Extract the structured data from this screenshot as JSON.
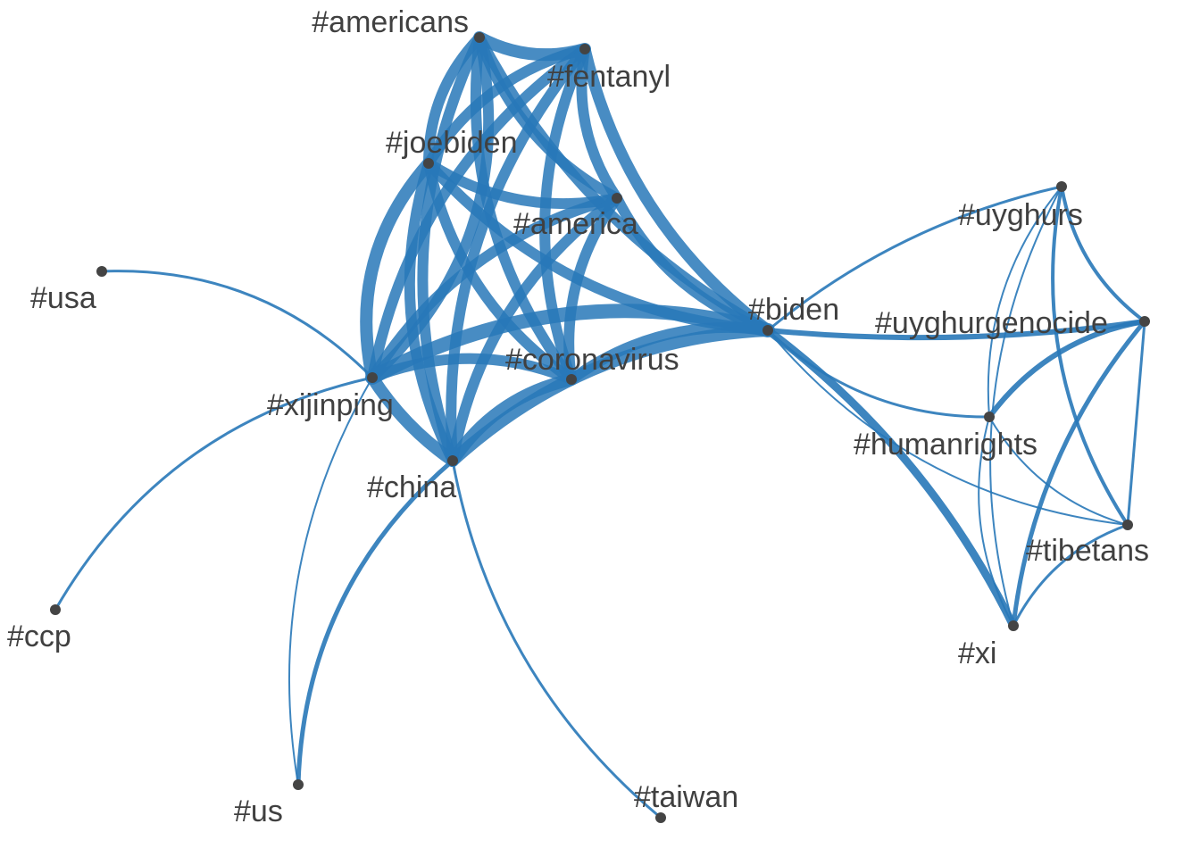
{
  "graph": {
    "colors": {
      "edge": "#2878b8",
      "node": "#444444",
      "label": "#404040",
      "background": "#ffffff"
    },
    "nodes": [
      {
        "id": "americans",
        "label": "#americans"
      },
      {
        "id": "fentanyl",
        "label": "#fentanyl"
      },
      {
        "id": "joebiden",
        "label": "#joebiden"
      },
      {
        "id": "america",
        "label": "#america"
      },
      {
        "id": "biden",
        "label": "#biden"
      },
      {
        "id": "coronavirus",
        "label": "#coronavirus"
      },
      {
        "id": "xijinping",
        "label": "#xijinping"
      },
      {
        "id": "china",
        "label": "#china"
      },
      {
        "id": "usa",
        "label": "#usa"
      },
      {
        "id": "ccp",
        "label": "#ccp"
      },
      {
        "id": "us",
        "label": "#us"
      },
      {
        "id": "taiwan",
        "label": "#taiwan"
      },
      {
        "id": "uyghurs",
        "label": "#uyghurs"
      },
      {
        "id": "uyghurgenocide",
        "label": "#uyghurgenocide"
      },
      {
        "id": "humanrights",
        "label": "#humanrights"
      },
      {
        "id": "tibetans",
        "label": "#tibetans"
      },
      {
        "id": "xi",
        "label": "#xi"
      }
    ],
    "edges": [
      {
        "source": "americans",
        "target": "fentanyl",
        "weight": 14
      },
      {
        "source": "americans",
        "target": "joebiden",
        "weight": 12
      },
      {
        "source": "americans",
        "target": "america",
        "weight": 12
      },
      {
        "source": "americans",
        "target": "biden",
        "weight": 12
      },
      {
        "source": "americans",
        "target": "coronavirus",
        "weight": 12
      },
      {
        "source": "americans",
        "target": "xijinping",
        "weight": 12
      },
      {
        "source": "americans",
        "target": "china",
        "weight": 12
      },
      {
        "source": "fentanyl",
        "target": "joebiden",
        "weight": 12
      },
      {
        "source": "fentanyl",
        "target": "america",
        "weight": 12
      },
      {
        "source": "fentanyl",
        "target": "biden",
        "weight": 13
      },
      {
        "source": "fentanyl",
        "target": "coronavirus",
        "weight": 12
      },
      {
        "source": "fentanyl",
        "target": "xijinping",
        "weight": 12
      },
      {
        "source": "fentanyl",
        "target": "china",
        "weight": 12
      },
      {
        "source": "joebiden",
        "target": "america",
        "weight": 12
      },
      {
        "source": "joebiden",
        "target": "biden",
        "weight": 12
      },
      {
        "source": "joebiden",
        "target": "coronavirus",
        "weight": 12
      },
      {
        "source": "joebiden",
        "target": "xijinping",
        "weight": 14
      },
      {
        "source": "joebiden",
        "target": "china",
        "weight": 12
      },
      {
        "source": "america",
        "target": "biden",
        "weight": 12
      },
      {
        "source": "america",
        "target": "coronavirus",
        "weight": 12
      },
      {
        "source": "america",
        "target": "xijinping",
        "weight": 12
      },
      {
        "source": "america",
        "target": "china",
        "weight": 12
      },
      {
        "source": "biden",
        "target": "coronavirus",
        "weight": 12
      },
      {
        "source": "biden",
        "target": "xijinping",
        "weight": 16
      },
      {
        "source": "biden",
        "target": "china",
        "weight": 14
      },
      {
        "source": "coronavirus",
        "target": "xijinping",
        "weight": 12
      },
      {
        "source": "coronavirus",
        "target": "china",
        "weight": 14
      },
      {
        "source": "xijinping",
        "target": "china",
        "weight": 14
      },
      {
        "source": "usa",
        "target": "xijinping",
        "weight": 3
      },
      {
        "source": "ccp",
        "target": "xijinping",
        "weight": 3
      },
      {
        "source": "us",
        "target": "xijinping",
        "weight": 2
      },
      {
        "source": "us",
        "target": "china",
        "weight": 5
      },
      {
        "source": "taiwan",
        "target": "china",
        "weight": 3
      },
      {
        "source": "biden",
        "target": "uyghurs",
        "weight": 3
      },
      {
        "source": "biden",
        "target": "uyghurgenocide",
        "weight": 6
      },
      {
        "source": "biden",
        "target": "humanrights",
        "weight": 3
      },
      {
        "source": "biden",
        "target": "tibetans",
        "weight": 2
      },
      {
        "source": "biden",
        "target": "xi",
        "weight": 9
      },
      {
        "source": "uyghurs",
        "target": "uyghurgenocide",
        "weight": 4
      },
      {
        "source": "uyghurs",
        "target": "humanrights",
        "weight": 2
      },
      {
        "source": "uyghurs",
        "target": "tibetans",
        "weight": 4
      },
      {
        "source": "uyghurs",
        "target": "xi",
        "weight": 2
      },
      {
        "source": "uyghurgenocide",
        "target": "humanrights",
        "weight": 6
      },
      {
        "source": "uyghurgenocide",
        "target": "tibetans",
        "weight": 3
      },
      {
        "source": "uyghurgenocide",
        "target": "xi",
        "weight": 5
      },
      {
        "source": "humanrights",
        "target": "tibetans",
        "weight": 2
      },
      {
        "source": "humanrights",
        "target": "xi",
        "weight": 2
      },
      {
        "source": "tibetans",
        "target": "xi",
        "weight": 3
      }
    ]
  }
}
